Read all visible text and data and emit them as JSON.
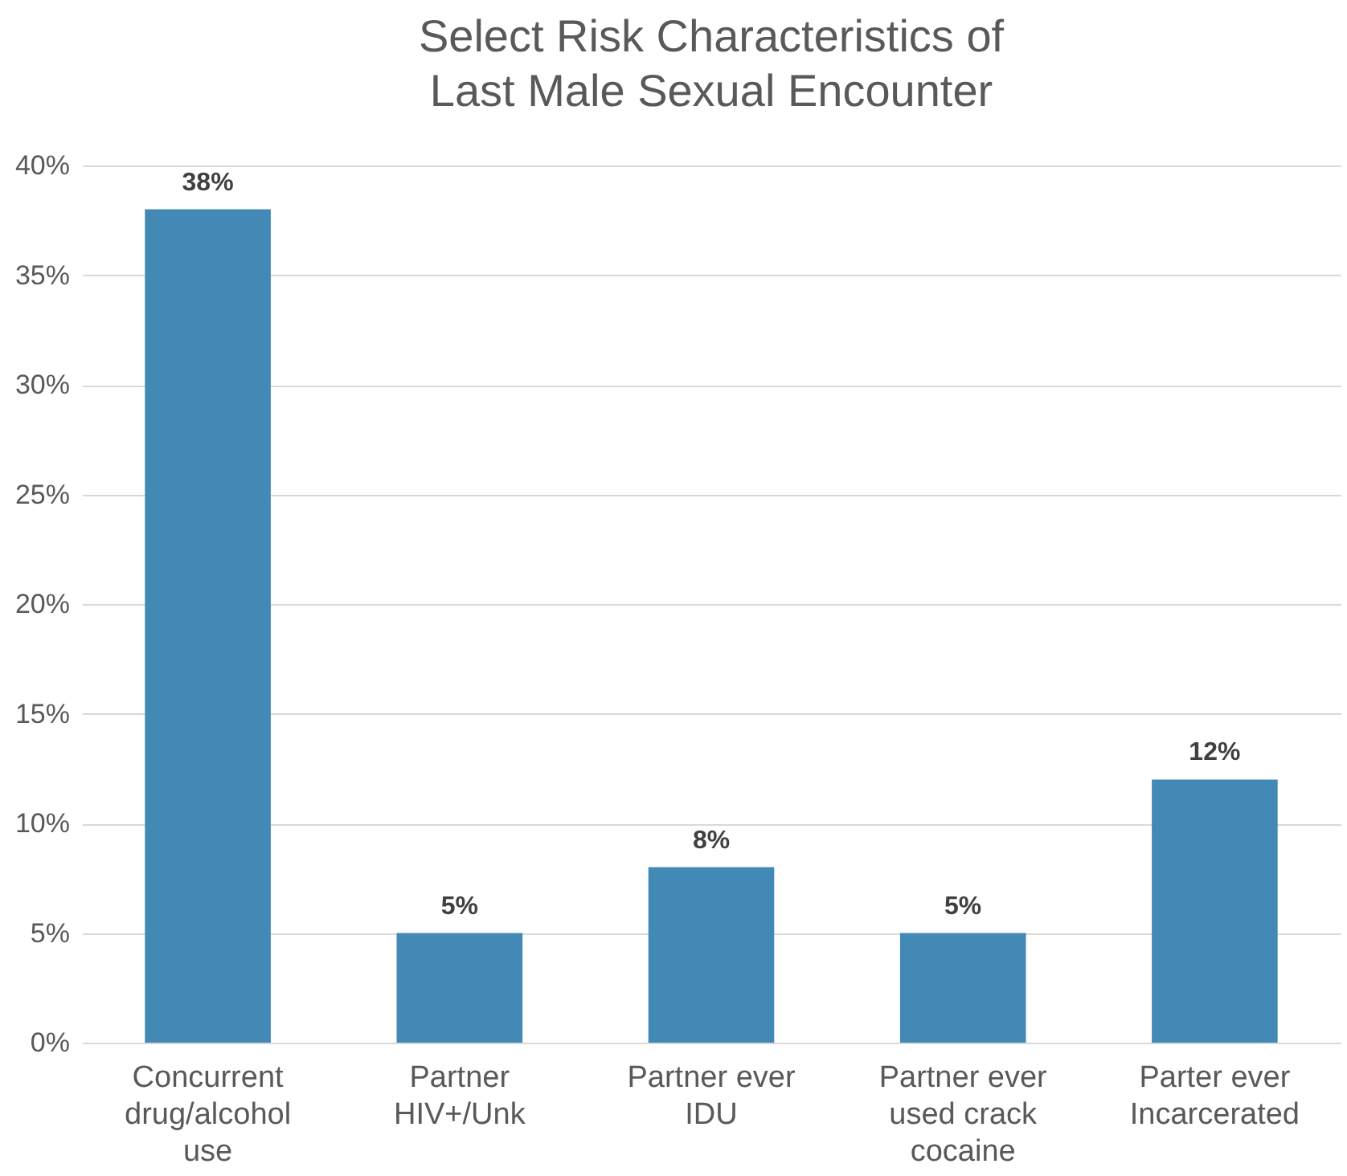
{
  "chart_data": {
    "type": "bar",
    "title": "Select Risk Characteristics of Last Male Sexual Encounter",
    "categories": [
      "Concurrent drug/alcohol use",
      "Partner HIV+/Unk",
      "Partner ever IDU",
      "Partner ever used crack cocaine",
      "Parter ever Incarcerated"
    ],
    "values": [
      38,
      5,
      8,
      5,
      12
    ],
    "value_labels": [
      "38%",
      "5%",
      "8%",
      "5%",
      "12%"
    ],
    "color": "#4389b5",
    "ylim": [
      0,
      40
    ],
    "yticks": [
      {
        "value": 0,
        "label": "0%"
      },
      {
        "value": 5,
        "label": "5%"
      },
      {
        "value": 10,
        "label": "10%"
      },
      {
        "value": 15,
        "label": "15%"
      },
      {
        "value": 20,
        "label": "20%"
      },
      {
        "value": 25,
        "label": "25%"
      },
      {
        "value": 30,
        "label": "30%"
      },
      {
        "value": 35,
        "label": "35%"
      },
      {
        "value": 40,
        "label": "40%"
      }
    ],
    "grid": "y"
  }
}
